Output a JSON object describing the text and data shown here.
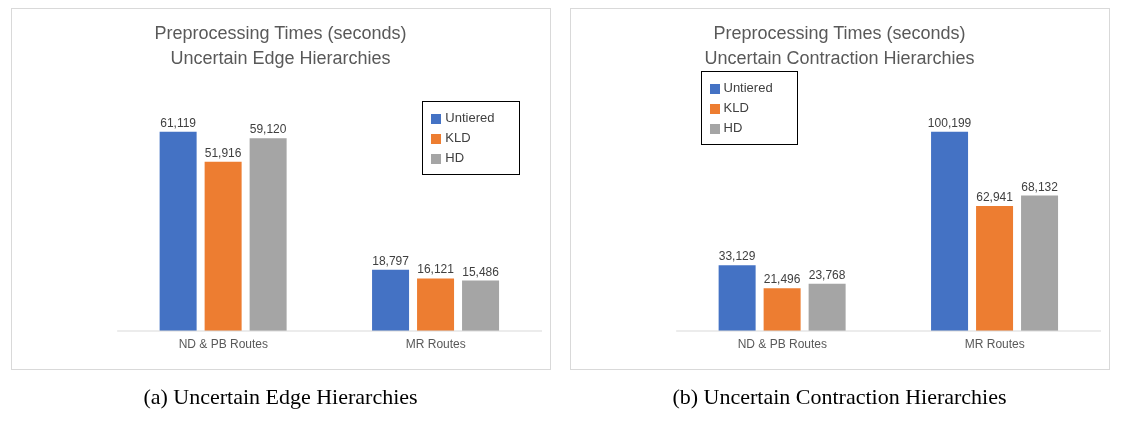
{
  "chart_data": [
    {
      "type": "bar",
      "title": "Preprocessing Times (seconds)",
      "subtitle": "Uncertain Edge Hierarchies",
      "categories": [
        "ND & PB Routes",
        "MR Routes"
      ],
      "series": [
        {
          "name": "Untiered",
          "color": "#4472c4",
          "values": [
            61119,
            18797
          ],
          "value_labels": [
            "61,119",
            "18,797"
          ]
        },
        {
          "name": "KLD",
          "color": "#ed7d31",
          "values": [
            51916,
            16121
          ],
          "value_labels": [
            "51,916",
            "16,121"
          ]
        },
        {
          "name": "HD",
          "color": "#a5a5a5",
          "values": [
            59120,
            15486
          ],
          "value_labels": [
            "59,120",
            "15,486"
          ]
        }
      ],
      "legend": "right",
      "annotations": [
        "(a) Uncertain Edge Hierarchies"
      ]
    },
    {
      "type": "bar",
      "title": "Preprocessing Times (seconds)",
      "subtitle": "Uncertain Contraction Hierarchies",
      "categories": [
        "ND & PB Routes",
        "MR Routes"
      ],
      "series": [
        {
          "name": "Untiered",
          "color": "#4472c4",
          "values": [
            33129,
            100199
          ],
          "value_labels": [
            "33,129",
            "100,199"
          ]
        },
        {
          "name": "KLD",
          "color": "#ed7d31",
          "values": [
            21496,
            62941
          ],
          "value_labels": [
            "21,496",
            "62,941"
          ]
        },
        {
          "name": "HD",
          "color": "#a5a5a5",
          "values": [
            23768,
            68132
          ],
          "value_labels": [
            "23,768",
            "68,132"
          ]
        }
      ],
      "legend": "top left",
      "annotations": [
        "(b) Uncertain Contraction Hierarchies"
      ]
    }
  ]
}
